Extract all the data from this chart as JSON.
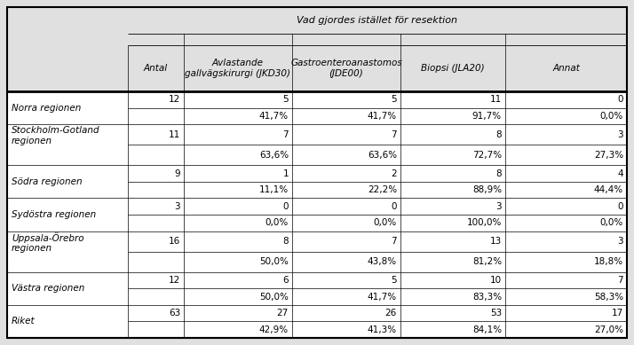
{
  "title": "Vad gjordes istället för resektion",
  "rows": [
    {
      "region": "Norra regionen",
      "antal": "12",
      "c2": "5",
      "c3": "5",
      "c4": "11",
      "c5": "0",
      "p2": "41,7%",
      "p3": "41,7%",
      "p4": "91,7%",
      "p5": "0,0%",
      "two_line": false
    },
    {
      "region": "Stockholm-Gotland\nregionen",
      "antal": "11",
      "c2": "7",
      "c3": "7",
      "c4": "8",
      "c5": "3",
      "p2": "63,6%",
      "p3": "63,6%",
      "p4": "72,7%",
      "p5": "27,3%",
      "two_line": true
    },
    {
      "region": "Södra regionen",
      "antal": "9",
      "c2": "1",
      "c3": "2",
      "c4": "8",
      "c5": "4",
      "p2": "11,1%",
      "p3": "22,2%",
      "p4": "88,9%",
      "p5": "44,4%",
      "two_line": false
    },
    {
      "region": "Sydöstra regionen",
      "antal": "3",
      "c2": "0",
      "c3": "0",
      "c4": "3",
      "c5": "0",
      "p2": "0,0%",
      "p3": "0,0%",
      "p4": "100,0%",
      "p5": "0,0%",
      "two_line": false
    },
    {
      "region": "Uppsala-Örebro\nregionen",
      "antal": "16",
      "c2": "8",
      "c3": "7",
      "c4": "13",
      "c5": "3",
      "p2": "50,0%",
      "p3": "43,8%",
      "p4": "81,2%",
      "p5": "18,8%",
      "two_line": true
    },
    {
      "region": "Västra regionen",
      "antal": "12",
      "c2": "6",
      "c3": "5",
      "c4": "10",
      "c5": "7",
      "p2": "50,0%",
      "p3": "41,7%",
      "p4": "83,3%",
      "p5": "58,3%",
      "two_line": false
    },
    {
      "region": "Riket",
      "antal": "63",
      "c2": "27",
      "c3": "26",
      "c4": "53",
      "c5": "17",
      "p2": "42,9%",
      "p3": "41,3%",
      "p4": "84,1%",
      "p5": "27,0%",
      "two_line": false
    }
  ],
  "bg_color": "#e0e0e0",
  "white": "#ffffff",
  "font_size": 7.5
}
